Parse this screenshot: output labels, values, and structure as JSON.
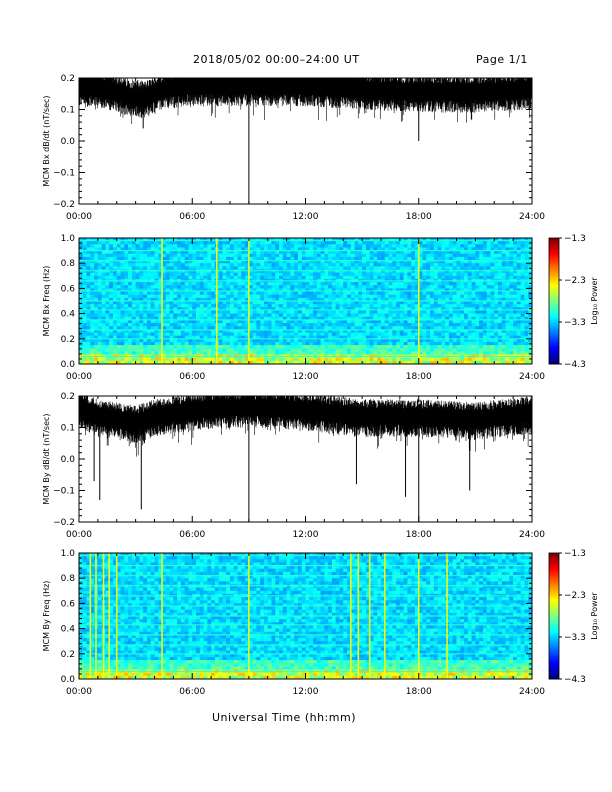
{
  "header": {
    "title": "2018/05/02   00:00–24:00 UT",
    "page": "Page 1/1"
  },
  "x_axis_label": "Universal Time (hh:mm)",
  "chart_data": [
    {
      "type": "line",
      "ylabel": "MCM Bx dB/dt (nT/sec)",
      "xlim": [
        0,
        24
      ],
      "ylim": [
        -0.2,
        0.2
      ],
      "xticks": [
        "00:00",
        "06:00",
        "12:00",
        "18:00",
        "24:00"
      ],
      "yticks": [
        "0.2",
        "0.1",
        "0.0",
        "−0.1",
        "−0.2"
      ],
      "baseline": 0.16,
      "series": [
        {
          "values": [
            {
              "t": 0.0,
              "y": 0.16
            },
            {
              "t": 1.5,
              "y": 0.15
            },
            {
              "t": 2.5,
              "y": 0.13
            },
            {
              "t": 3.5,
              "y": 0.12
            },
            {
              "t": 4.5,
              "y": 0.15
            },
            {
              "t": 6.0,
              "y": 0.16
            },
            {
              "t": 9.0,
              "y": 0.16
            },
            {
              "t": 12.0,
              "y": 0.16
            },
            {
              "t": 15.0,
              "y": 0.15
            },
            {
              "t": 18.0,
              "y": 0.14
            },
            {
              "t": 21.0,
              "y": 0.14
            },
            {
              "t": 24.0,
              "y": 0.15
            }
          ]
        }
      ],
      "spikes": [
        {
          "t": 9.0,
          "y": -0.2
        },
        {
          "t": 18.0,
          "y": 0.0
        },
        {
          "t": 3.4,
          "y": 0.04
        }
      ]
    },
    {
      "type": "heatmap",
      "ylabel": "MCM Bx Freq (Hz)",
      "xlim": [
        0,
        24
      ],
      "ylim": [
        0,
        1.0
      ],
      "xticks": [
        "00:00",
        "06:00",
        "12:00",
        "18:00",
        "24:00"
      ],
      "yticks": [
        "1.0",
        "0.8",
        "0.6",
        "0.4",
        "0.2",
        "0.0"
      ],
      "colorbar": {
        "label": "Log₁₀ Power",
        "ticks": [
          "−1.3",
          "−2.3",
          "−3.3",
          "−4.3"
        ],
        "range": [
          -4.3,
          -1.3
        ]
      },
      "harmonics_hz": [
        0.06,
        0.12,
        0.2,
        0.27,
        0.35,
        0.43,
        0.5,
        0.58,
        0.66,
        0.74,
        0.82,
        0.9,
        0.98
      ],
      "broadband_times": [
        4.4,
        7.3,
        9.0,
        18.0
      ],
      "colors": {
        "low": "#000060",
        "mid": "#1040ff",
        "high": "#ff0000"
      }
    },
    {
      "type": "line",
      "ylabel": "MCM By dB/dt (nT/sec)",
      "xlim": [
        0,
        24
      ],
      "ylim": [
        -0.2,
        0.2
      ],
      "xticks": [
        "00:00",
        "06:00",
        "12:00",
        "18:00",
        "24:00"
      ],
      "yticks": [
        "0.2",
        "0.1",
        "0.0",
        "−0.1",
        "−0.2"
      ],
      "baseline": 0.15,
      "series": [
        {
          "values": [
            {
              "t": 0.0,
              "y": 0.15
            },
            {
              "t": 1.0,
              "y": 0.12
            },
            {
              "t": 2.0,
              "y": 0.11
            },
            {
              "t": 3.0,
              "y": 0.1
            },
            {
              "t": 4.0,
              "y": 0.12
            },
            {
              "t": 6.0,
              "y": 0.14
            },
            {
              "t": 9.0,
              "y": 0.15
            },
            {
              "t": 12.0,
              "y": 0.14
            },
            {
              "t": 15.0,
              "y": 0.12
            },
            {
              "t": 18.0,
              "y": 0.12
            },
            {
              "t": 21.0,
              "y": 0.11
            },
            {
              "t": 24.0,
              "y": 0.13
            }
          ]
        }
      ],
      "spikes": [
        {
          "t": 0.8,
          "y": -0.07
        },
        {
          "t": 1.1,
          "y": -0.13
        },
        {
          "t": 3.3,
          "y": -0.16
        },
        {
          "t": 9.0,
          "y": -0.2
        },
        {
          "t": 14.7,
          "y": -0.08
        },
        {
          "t": 17.3,
          "y": -0.12
        },
        {
          "t": 18.0,
          "y": -0.2
        },
        {
          "t": 20.7,
          "y": -0.1
        }
      ]
    },
    {
      "type": "heatmap",
      "ylabel": "MCM By Freq (Hz)",
      "xlim": [
        0,
        24
      ],
      "ylim": [
        0,
        1.0
      ],
      "xticks": [
        "00:00",
        "06:00",
        "12:00",
        "18:00",
        "24:00"
      ],
      "yticks": [
        "1.0",
        "0.8",
        "0.6",
        "0.4",
        "0.2",
        "0.0"
      ],
      "colorbar": {
        "label": "Log₁₀ Power",
        "ticks": [
          "−1.3",
          "−2.3",
          "−3.3",
          "−4.3"
        ],
        "range": [
          -4.3,
          -1.3
        ]
      },
      "harmonics_hz": [
        0.06,
        0.12,
        0.2,
        0.27,
        0.35,
        0.43,
        0.5,
        0.58,
        0.66,
        0.74,
        0.82,
        0.9,
        0.98
      ],
      "broadband_times": [
        0.6,
        0.9,
        1.3,
        1.6,
        2.0,
        4.4,
        9.0,
        14.4,
        14.8,
        15.4,
        16.2,
        18.0,
        19.5
      ],
      "colors": {
        "low": "#000060",
        "mid": "#1040ff",
        "high": "#ff0000"
      }
    }
  ]
}
